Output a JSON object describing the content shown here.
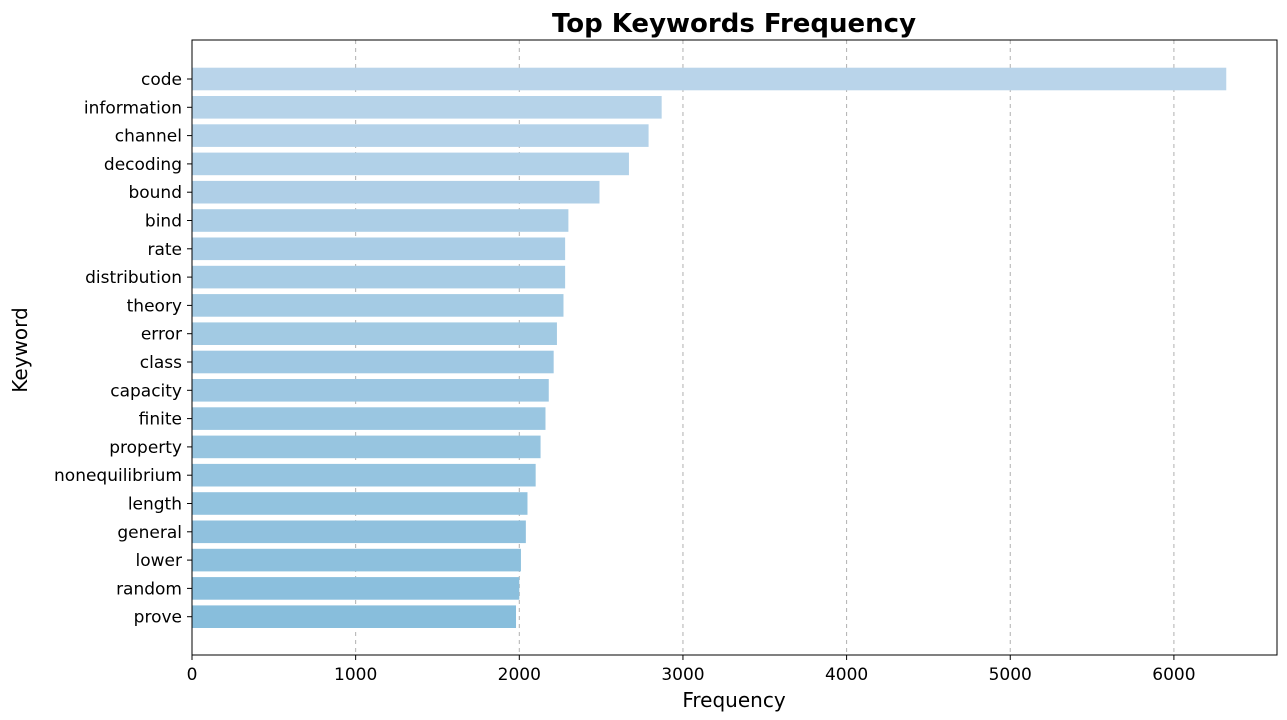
{
  "chart_data": {
    "type": "bar",
    "orientation": "horizontal",
    "title": "Top Keywords Frequency",
    "xlabel": "Frequency",
    "ylabel": "Keyword",
    "xlim": [
      0,
      6630
    ],
    "x_ticks": [
      0,
      1000,
      2000,
      3000,
      4000,
      5000,
      6000
    ],
    "grid": "x-axis dashed",
    "categories": [
      "code",
      "information",
      "channel",
      "decoding",
      "bound",
      "bind",
      "rate",
      "distribution",
      "theory",
      "error",
      "class",
      "capacity",
      "finite",
      "property",
      "nonequilibrium",
      "length",
      "general",
      "lower",
      "random",
      "prove"
    ],
    "values": [
      6320,
      2870,
      2790,
      2670,
      2490,
      2300,
      2280,
      2280,
      2270,
      2230,
      2210,
      2180,
      2160,
      2130,
      2100,
      2050,
      2040,
      2010,
      2000,
      1980
    ],
    "colors": {
      "title": "#00008b",
      "bar_top": "#b9d4ea",
      "bar_bottom": "#88bedc",
      "grid": "#b0b0b0"
    }
  }
}
